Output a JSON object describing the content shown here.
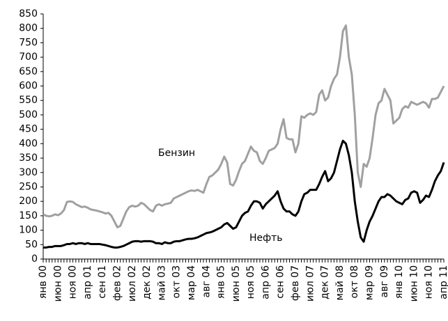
{
  "chart_data": {
    "type": "line",
    "categories": [
      "янв 00",
      null,
      null,
      null,
      null,
      "июн 00",
      null,
      null,
      null,
      null,
      "ноя 00",
      null,
      null,
      null,
      null,
      "апр 01",
      null,
      null,
      null,
      null,
      "сен 01",
      null,
      null,
      null,
      null,
      "фев 02",
      null,
      null,
      null,
      null,
      "июл 02",
      null,
      null,
      null,
      null,
      "дек 02",
      null,
      null,
      null,
      null,
      "май 03",
      null,
      null,
      null,
      null,
      "окт 03",
      null,
      null,
      null,
      null,
      "мар 04",
      null,
      null,
      null,
      null,
      "авг 04",
      null,
      null,
      null,
      null,
      "янв 05",
      null,
      null,
      null,
      null,
      "июн 05",
      null,
      null,
      null,
      null,
      "ноя 05",
      null,
      null,
      null,
      null,
      "апр 06",
      null,
      null,
      null,
      null,
      "сен 06",
      null,
      null,
      null,
      null,
      "фев 07",
      null,
      null,
      null,
      null,
      "июл 07",
      null,
      null,
      null,
      null,
      "дек 07",
      null,
      null,
      null,
      null,
      "май 08",
      null,
      null,
      null,
      null,
      "окт 08",
      null,
      null,
      null,
      null,
      "мар 09",
      null,
      null,
      null,
      null,
      "авг 09",
      null,
      null,
      null,
      null,
      "янв 10",
      null,
      null,
      null,
      null,
      "июн 10",
      null,
      null,
      null,
      null,
      "ноя 10",
      null,
      null,
      null,
      null,
      "апр 11"
    ],
    "series": [
      {
        "name": "Бензин",
        "color": "#a0a0a0",
        "values": [
          155,
          150,
          148,
          150,
          155,
          152,
          158,
          170,
          198,
          200,
          198,
          190,
          185,
          180,
          182,
          178,
          172,
          170,
          168,
          165,
          162,
          158,
          160,
          150,
          130,
          110,
          115,
          140,
          165,
          180,
          185,
          182,
          185,
          195,
          190,
          180,
          170,
          165,
          185,
          190,
          185,
          190,
          192,
          195,
          210,
          215,
          220,
          225,
          230,
          235,
          238,
          236,
          240,
          235,
          230,
          260,
          285,
          290,
          300,
          310,
          330,
          355,
          335,
          260,
          255,
          275,
          305,
          330,
          340,
          365,
          390,
          375,
          370,
          340,
          330,
          350,
          375,
          380,
          385,
          400,
          450,
          485,
          420,
          415,
          415,
          370,
          400,
          495,
          490,
          500,
          505,
          500,
          510,
          570,
          585,
          550,
          560,
          600,
          625,
          640,
          700,
          790,
          810,
          700,
          640,
          500,
          300,
          250,
          330,
          320,
          350,
          420,
          500,
          540,
          550,
          590,
          570,
          550,
          470,
          480,
          490,
          520,
          530,
          525,
          545,
          540,
          535,
          540,
          545,
          540,
          525,
          555,
          555,
          560,
          580,
          600
        ]
      },
      {
        "name": "Нефть",
        "color": "#000000",
        "values": [
          40,
          40,
          42,
          42,
          45,
          45,
          45,
          48,
          52,
          52,
          55,
          52,
          55,
          55,
          52,
          55,
          52,
          52,
          52,
          52,
          50,
          48,
          45,
          42,
          40,
          40,
          42,
          45,
          50,
          55,
          60,
          62,
          62,
          60,
          62,
          62,
          62,
          60,
          55,
          55,
          52,
          58,
          55,
          55,
          60,
          62,
          62,
          65,
          68,
          70,
          70,
          72,
          75,
          80,
          85,
          90,
          92,
          95,
          100,
          105,
          110,
          120,
          125,
          115,
          105,
          110,
          130,
          150,
          160,
          165,
          185,
          200,
          200,
          195,
          175,
          190,
          200,
          210,
          220,
          235,
          200,
          175,
          165,
          165,
          155,
          150,
          165,
          200,
          225,
          230,
          240,
          240,
          240,
          260,
          285,
          305,
          270,
          280,
          300,
          340,
          380,
          410,
          400,
          360,
          300,
          200,
          130,
          75,
          60,
          100,
          130,
          150,
          175,
          200,
          215,
          215,
          225,
          220,
          210,
          200,
          195,
          190,
          205,
          210,
          230,
          235,
          230,
          195,
          205,
          220,
          215,
          240,
          270,
          290,
          305,
          335
        ]
      }
    ],
    "ylim": [
      0,
      850
    ],
    "yticks": [
      0,
      50,
      100,
      150,
      200,
      250,
      300,
      350,
      400,
      450,
      500,
      550,
      600,
      650,
      700,
      750,
      800,
      850
    ],
    "grid": false
  }
}
